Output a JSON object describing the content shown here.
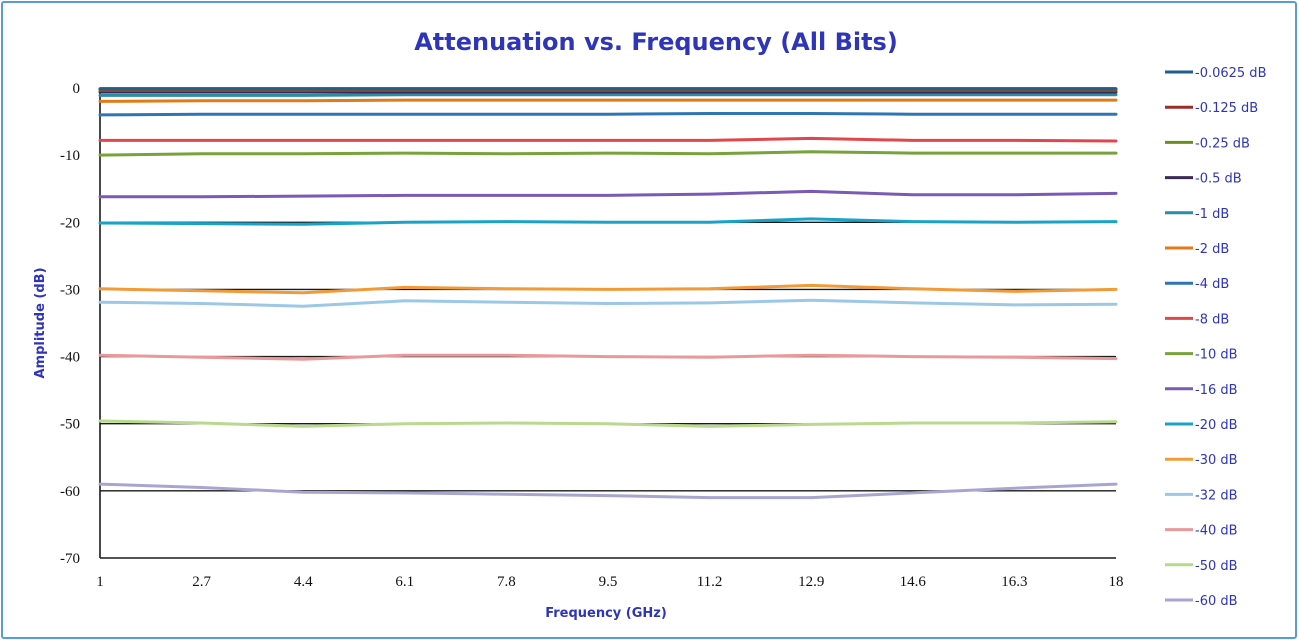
{
  "chart_data": {
    "type": "line",
    "title": "Attenuation vs. Frequency (All Bits)",
    "xlabel": "Frequency (GHz)",
    "ylabel": "Amplitude (dB)",
    "xlim": [
      1,
      18
    ],
    "ylim": [
      -70,
      0
    ],
    "x_ticks": [
      "1",
      "2.7",
      "4.4",
      "6.1",
      "7.8",
      "9.5",
      "11.2",
      "12.9",
      "14.6",
      "16.3",
      "18"
    ],
    "y_ticks": [
      "0",
      "-10",
      "-20",
      "-30",
      "-40",
      "-50",
      "-60",
      "-70"
    ],
    "grid": "horizontal gridlines at -20, -30, -40, -50, -60 and 0",
    "legend": "right",
    "x": [
      1,
      2.7,
      4.4,
      6.1,
      7.8,
      9.5,
      11.2,
      12.9,
      14.6,
      16.3,
      18
    ],
    "series": [
      {
        "name": "-0.0625 dB",
        "color": "#1f5f8b",
        "values": [
          -0.1,
          -0.1,
          -0.1,
          -0.1,
          -0.1,
          -0.1,
          -0.1,
          -0.1,
          -0.1,
          -0.1,
          -0.1
        ]
      },
      {
        "name": "-0.125 dB",
        "color": "#9b2d2a",
        "values": [
          -0.2,
          -0.2,
          -0.2,
          -0.2,
          -0.2,
          -0.2,
          -0.2,
          -0.2,
          -0.2,
          -0.2,
          -0.2
        ]
      },
      {
        "name": "-0.25 dB",
        "color": "#6b8e23",
        "values": [
          -0.3,
          -0.3,
          -0.3,
          -0.3,
          -0.3,
          -0.3,
          -0.3,
          -0.3,
          -0.3,
          -0.3,
          -0.3
        ]
      },
      {
        "name": "-0.5 dB",
        "color": "#3b2a57",
        "values": [
          -0.6,
          -0.6,
          -0.6,
          -0.6,
          -0.6,
          -0.6,
          -0.6,
          -0.6,
          -0.6,
          -0.6,
          -0.6
        ]
      },
      {
        "name": "-1 dB",
        "color": "#2b8ca6",
        "values": [
          -1.1,
          -1.1,
          -1.1,
          -1.0,
          -1.0,
          -1.0,
          -1.0,
          -1.0,
          -1.0,
          -1.0,
          -1.0
        ]
      },
      {
        "name": "-2 dB",
        "color": "#e07b16",
        "values": [
          -2.0,
          -1.9,
          -1.9,
          -1.8,
          -1.8,
          -1.8,
          -1.8,
          -1.8,
          -1.8,
          -1.8,
          -1.8
        ]
      },
      {
        "name": "-4 dB",
        "color": "#2f75b5",
        "values": [
          -4.0,
          -3.9,
          -3.9,
          -3.9,
          -3.9,
          -3.9,
          -3.8,
          -3.8,
          -3.9,
          -3.9,
          -3.9
        ]
      },
      {
        "name": "-8 dB",
        "color": "#e0474c",
        "values": [
          -7.8,
          -7.8,
          -7.8,
          -7.8,
          -7.8,
          -7.8,
          -7.8,
          -7.5,
          -7.8,
          -7.8,
          -7.9
        ]
      },
      {
        "name": "-10 dB",
        "color": "#76a33a",
        "values": [
          -10.0,
          -9.8,
          -9.8,
          -9.7,
          -9.8,
          -9.7,
          -9.8,
          -9.5,
          -9.7,
          -9.7,
          -9.7
        ]
      },
      {
        "name": "-16 dB",
        "color": "#7a5ab5",
        "values": [
          -16.2,
          -16.2,
          -16.1,
          -16.0,
          -16.0,
          -16.0,
          -15.8,
          -15.4,
          -15.9,
          -15.9,
          -15.7
        ]
      },
      {
        "name": "-20 dB",
        "color": "#1aa3c7",
        "values": [
          -20.1,
          -20.2,
          -20.3,
          -20.0,
          -19.9,
          -20.0,
          -20.0,
          -19.5,
          -19.9,
          -20.0,
          -19.9
        ]
      },
      {
        "name": "-30 dB",
        "color": "#f39a38",
        "values": [
          -29.9,
          -30.2,
          -30.5,
          -29.7,
          -29.9,
          -30.0,
          -29.9,
          -29.4,
          -29.9,
          -30.3,
          -30.0
        ]
      },
      {
        "name": "-32 dB",
        "color": "#9cc8e6",
        "values": [
          -31.9,
          -32.1,
          -32.5,
          -31.7,
          -31.9,
          -32.1,
          -32.0,
          -31.6,
          -32.0,
          -32.3,
          -32.2
        ]
      },
      {
        "name": "-40 dB",
        "color": "#e8999b",
        "values": [
          -39.8,
          -40.1,
          -40.4,
          -39.8,
          -39.8,
          -40.0,
          -40.1,
          -39.8,
          -40.0,
          -40.1,
          -40.3
        ]
      },
      {
        "name": "-50 dB",
        "color": "#b8d98e",
        "values": [
          -49.6,
          -49.9,
          -50.4,
          -50.0,
          -49.9,
          -50.0,
          -50.4,
          -50.1,
          -49.9,
          -49.9,
          -49.7
        ]
      },
      {
        "name": "-60 dB",
        "color": "#a8a6d0",
        "values": [
          -59.0,
          -59.5,
          -60.2,
          -60.3,
          -60.5,
          -60.7,
          -61.0,
          -61.0,
          -60.3,
          -59.6,
          -59.0
        ]
      }
    ]
  }
}
